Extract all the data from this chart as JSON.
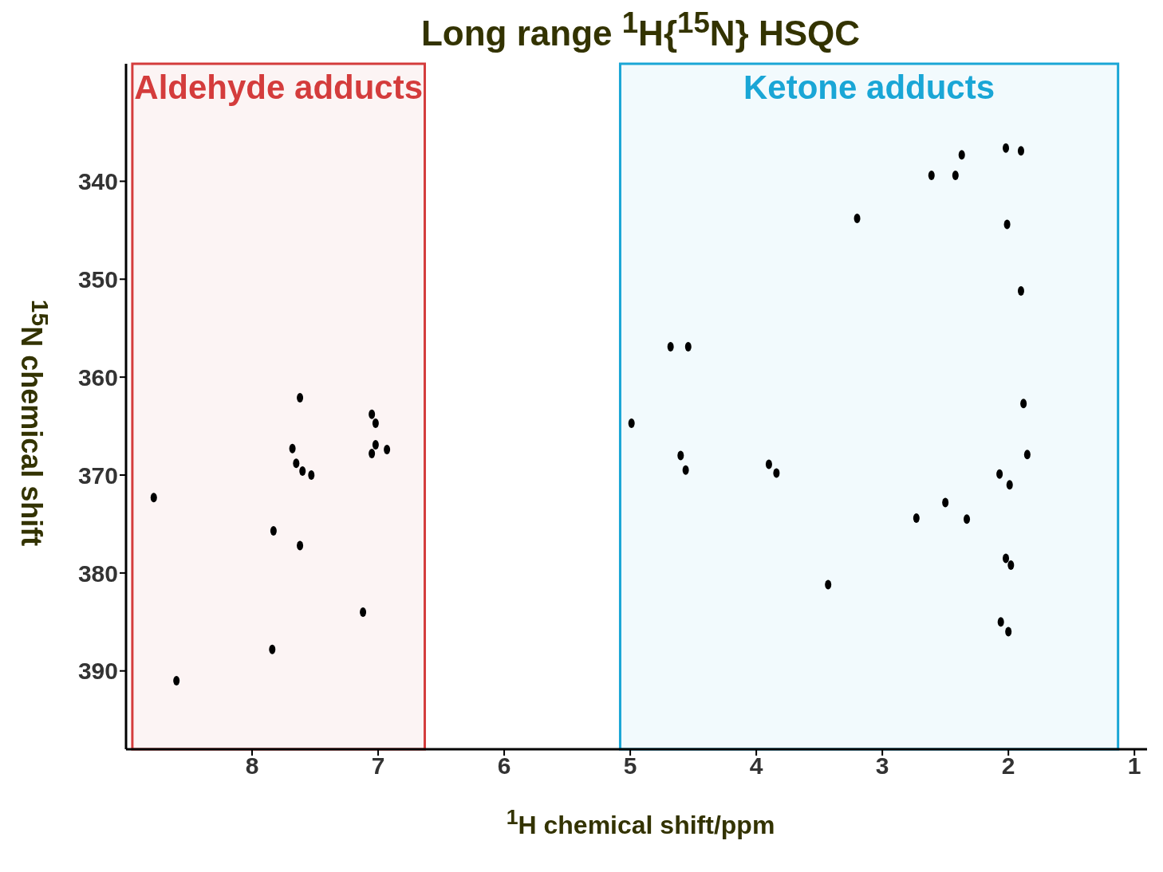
{
  "chart_data": {
    "type": "scatter",
    "title": "Long range $^{1}$H{$^{15}$N} HSQC",
    "xlabel": "$^{1}$H chemical shift/ppm",
    "ylabel": "$^{15}$N chemical shift",
    "x": [
      8.78,
      8.6,
      7.62,
      7.68,
      7.65,
      7.6,
      7.53,
      7.83,
      7.62,
      7.84,
      7.12,
      7.05,
      7.02,
      7.02,
      7.05,
      6.93,
      2.02,
      1.9,
      2.37,
      2.61,
      2.42,
      3.2,
      2.01,
      1.9,
      4.68,
      4.54,
      1.88,
      4.99,
      1.85,
      4.6,
      4.56,
      3.9,
      3.84,
      2.07,
      1.99,
      2.5,
      2.73,
      2.33,
      2.02,
      1.98,
      3.43,
      2.06,
      2.0
    ],
    "series": [
      {
        "color": "#000000",
        "values": [
          372.3,
          391,
          362.1,
          367.3,
          368.8,
          369.6,
          370.0,
          375.7,
          377.2,
          387.8,
          384,
          363.8,
          364.7,
          366.9,
          367.8,
          367.4,
          336.6,
          336.9,
          337.3,
          339.4,
          339.4,
          343.8,
          344.4,
          351.2,
          356.9,
          356.9,
          362.7,
          364.7,
          367.9,
          368.0,
          369.5,
          368.9,
          369.8,
          369.9,
          371.0,
          372.8,
          374.4,
          374.5,
          378.5,
          379.2,
          381.2,
          385.0,
          386.0
        ]
      }
    ],
    "marker": "circle",
    "xlim": [
      9.0,
      0.9
    ],
    "xticks": [
      8,
      7,
      6,
      5,
      4,
      3,
      2,
      1
    ],
    "ylim": [
      398,
      328
    ],
    "yticks": [
      340,
      350,
      360,
      370,
      380,
      390
    ],
    "grid": false,
    "legend": false,
    "bands": [
      {
        "axis": "x",
        "from": 8.95,
        "to": 6.63,
        "label": "Aldehyde adducts",
        "color": "#d43c3c"
      },
      {
        "axis": "x",
        "from": 5.08,
        "to": 1.13,
        "label": "Ketone adducts",
        "color": "#1aa6d6"
      }
    ]
  }
}
